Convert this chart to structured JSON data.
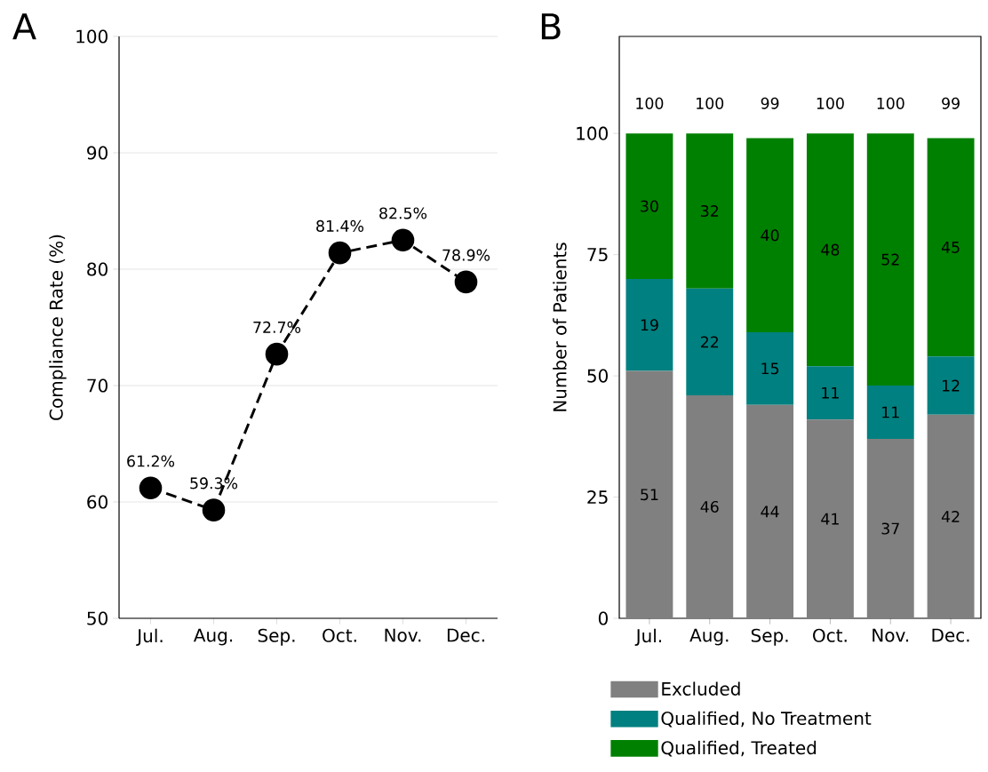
{
  "chart_data": [
    {
      "type": "line",
      "title": "A",
      "ylabel": "Compliance Rate (%)",
      "categories": [
        "Jul.",
        "Aug.",
        "Sep.",
        "Oct.",
        "Nov.",
        "Dec."
      ],
      "values": [
        61.2,
        59.3,
        72.7,
        81.4,
        82.5,
        78.9
      ],
      "value_labels": [
        "61.2%",
        "59.3%",
        "72.7%",
        "81.4%",
        "82.5%",
        "78.9%"
      ],
      "color": "#000000",
      "marker": "circle",
      "line_style": "dashed",
      "grid": "y",
      "ylim": [
        50,
        100
      ],
      "yticks": [
        50,
        60,
        70,
        80,
        90,
        100
      ]
    },
    {
      "type": "bar",
      "title": "B",
      "ylabel": "Number of Patients",
      "categories": [
        "Jul.",
        "Aug.",
        "Sep.",
        "Oct.",
        "Nov.",
        "Dec."
      ],
      "series": [
        {
          "name": "Excluded",
          "color": "#808080",
          "values": [
            51,
            46,
            44,
            41,
            37,
            42
          ]
        },
        {
          "name": "Qualified, No Treatment",
          "color": "#008080",
          "values": [
            19,
            22,
            15,
            11,
            11,
            12
          ]
        },
        {
          "name": "Qualified, Treated",
          "color": "#008000",
          "values": [
            30,
            32,
            40,
            48,
            52,
            45
          ]
        }
      ],
      "stacked": true,
      "data_labels": true,
      "totals": [
        "100",
        "100",
        "99",
        "100",
        "100",
        "99"
      ],
      "legend": "bottom",
      "ylim": [
        0,
        120
      ],
      "yticks": [
        0,
        25,
        50,
        75,
        100
      ]
    }
  ]
}
